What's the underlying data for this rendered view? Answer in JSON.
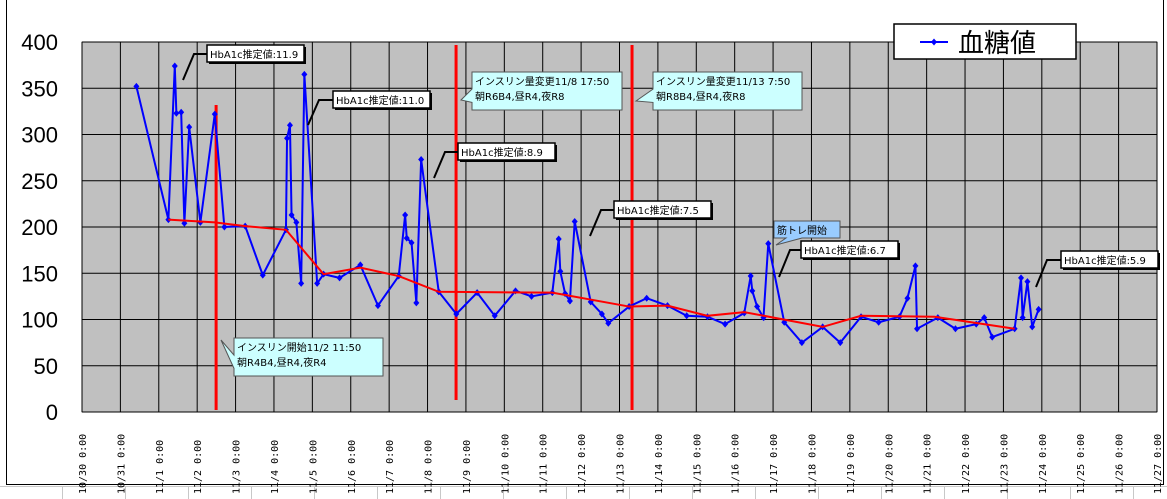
{
  "chart_data": {
    "type": "line",
    "title": "",
    "xlabel": "",
    "ylabel": "",
    "ylim": [
      0,
      400
    ],
    "yticks": [
      "0",
      "50",
      "100",
      "150",
      "200",
      "250",
      "300",
      "350",
      "400"
    ],
    "xlim": [
      "10/30 0:00",
      "11/27 0:00"
    ],
    "xticks": [
      "10/30 0:00",
      "10/31 0:00",
      "11/1 0:00",
      "11/2 0:00",
      "11/3 0:00",
      "11/4 0:00",
      "11/5 0:00",
      "11/6 0:00",
      "11/7 0:00",
      "11/8 0:00",
      "11/9 0:00",
      "11/10 0:00",
      "11/11 0:00",
      "11/12 0:00",
      "11/13 0:00",
      "11/14 0:00",
      "11/15 0:00",
      "11/16 0:00",
      "11/17 0:00",
      "11/18 0:00",
      "11/19 0:00",
      "11/20 0:00",
      "11/21 0:00",
      "11/22 0:00",
      "11/23 0:00",
      "11/24 0:00",
      "11/25 0:00",
      "11/26 0:00",
      "11/27 0:00"
    ],
    "grid": true,
    "background": "#c0c0c0",
    "legend": {
      "placement": "top-right",
      "entries": [
        "血糖値"
      ]
    },
    "series": [
      {
        "name": "血糖値",
        "color": "#0000ff",
        "marker": "diamond",
        "points": [
          [
            "10/31 10:00",
            352
          ],
          [
            "11/1 6:00",
            208
          ],
          [
            "11/1 10:00",
            374
          ],
          [
            "11/1 11:00",
            323
          ],
          [
            "11/1 14:00",
            324
          ],
          [
            "11/1 16:00",
            204
          ],
          [
            "11/1 19:00",
            308
          ],
          [
            "11/2 2:00",
            205
          ],
          [
            "11/2 11:00",
            322
          ],
          [
            "11/2 17:00",
            200
          ],
          [
            "11/3 6:00",
            201
          ],
          [
            "11/3 17:00",
            148
          ],
          [
            "11/4 7:30",
            197
          ],
          [
            "11/4 8:10",
            296
          ],
          [
            "11/4 10:00",
            310
          ],
          [
            "11/4 11:00",
            213
          ],
          [
            "11/4 14:00",
            205
          ],
          [
            "11/4 17:00",
            139
          ],
          [
            "11/4 19:00",
            365
          ],
          [
            "11/5 3:00",
            139
          ],
          [
            "11/5 7:00",
            149
          ],
          [
            "11/5 17:00",
            145
          ],
          [
            "11/6 6:00",
            159
          ],
          [
            "11/6 17:00",
            115
          ],
          [
            "11/7 6:00",
            147
          ],
          [
            "11/7 10:00",
            213
          ],
          [
            "11/7 11:00",
            188
          ],
          [
            "11/7 14:00",
            183
          ],
          [
            "11/7 17:00",
            118
          ],
          [
            "11/7 20:00",
            273
          ],
          [
            "11/8 7:00",
            130
          ],
          [
            "11/8 18:00",
            106
          ],
          [
            "11/9 7:00",
            129
          ],
          [
            "11/9 18:00",
            104
          ],
          [
            "11/10 7:00",
            131
          ],
          [
            "11/10 17:00",
            125
          ],
          [
            "11/11 6:00",
            129
          ],
          [
            "11/11 10:00",
            187
          ],
          [
            "11/11 11:00",
            152
          ],
          [
            "11/11 14:00",
            128
          ],
          [
            "11/11 17:00",
            120
          ],
          [
            "11/11 20:00",
            206
          ],
          [
            "11/12 6:00",
            119
          ],
          [
            "11/12 13:00",
            106
          ],
          [
            "11/12 17:00",
            96
          ],
          [
            "11/13 6:00",
            114
          ],
          [
            "11/13 17:00",
            123
          ],
          [
            "11/14 6:00",
            115
          ],
          [
            "11/14 18:00",
            104
          ],
          [
            "11/15 7:00",
            103
          ],
          [
            "11/15 18:00",
            95
          ],
          [
            "11/16 6:00",
            107
          ],
          [
            "11/16 10:00",
            147
          ],
          [
            "11/16 11:00",
            131
          ],
          [
            "11/16 14:00",
            114
          ],
          [
            "11/16 18:00",
            102
          ],
          [
            "11/16 21:00",
            182
          ],
          [
            "11/17 7:00",
            97
          ],
          [
            "11/17 18:00",
            75
          ],
          [
            "11/18 7:00",
            92
          ],
          [
            "11/18 18:00",
            75
          ],
          [
            "11/19 7:00",
            103
          ],
          [
            "11/19 18:00",
            97
          ],
          [
            "11/20 7:00",
            103
          ],
          [
            "11/20 12:00",
            123
          ],
          [
            "11/20 17:00",
            158
          ],
          [
            "11/20 18:00",
            90
          ],
          [
            "11/21 7:00",
            102
          ],
          [
            "11/21 18:00",
            90
          ],
          [
            "11/22 7:00",
            95
          ],
          [
            "11/22 12:00",
            102
          ],
          [
            "11/22 17:00",
            81
          ],
          [
            "11/23 7:00",
            90
          ],
          [
            "11/23 11:00",
            145
          ],
          [
            "11/23 12:00",
            102
          ],
          [
            "11/23 15:00",
            141
          ],
          [
            "11/23 18:00",
            92
          ],
          [
            "11/23 22:00",
            111
          ]
        ]
      },
      {
        "color": "#ff0000",
        "marker": "none",
        "points": [
          [
            "11/1 6:00",
            208
          ],
          [
            "11/2 11:00",
            205
          ],
          [
            "11/3 6:00",
            201
          ],
          [
            "11/4 7:30",
            197
          ],
          [
            "11/5 7:00",
            149
          ],
          [
            "11/6 6:00",
            156
          ],
          [
            "11/7 6:00",
            147
          ],
          [
            "11/8 7:00",
            130
          ],
          [
            "11/11 6:00",
            129
          ],
          [
            "11/13 6:00",
            114
          ],
          [
            "11/14 6:00",
            115
          ],
          [
            "11/15 7:00",
            104
          ],
          [
            "11/16 6:00",
            108
          ],
          [
            "11/18 7:00",
            92
          ],
          [
            "11/19 7:00",
            104
          ],
          [
            "11/21 5:00",
            103
          ],
          [
            "11/23 7:00",
            90
          ]
        ]
      }
    ],
    "event_lines": [
      {
        "x": "11/2 11:50",
        "color": "#ff0000"
      },
      {
        "x": "11/8 17:50",
        "color": "#ff0000"
      },
      {
        "x": "11/13 7:50",
        "color": "#ff0000"
      }
    ],
    "annotations": [
      {
        "kind": "hba1c",
        "text": "HbA1c推定値:11.9"
      },
      {
        "kind": "hba1c",
        "text": "HbA1c推定値:11.0"
      },
      {
        "kind": "hba1c",
        "text": "HbA1c推定値:8.9"
      },
      {
        "kind": "hba1c",
        "text": "HbA1c推定値:7.5"
      },
      {
        "kind": "hba1c",
        "text": "HbA1c推定値:6.7"
      },
      {
        "kind": "hba1c",
        "text": "HbA1c推定値:5.9"
      },
      {
        "kind": "callout",
        "line1": "インスリン開始11/2 11:50",
        "line2": "朝R4B4,昼R4,夜R4",
        "color": "#ccffff"
      },
      {
        "kind": "callout",
        "line1": "インスリン量変更11/8 17:50",
        "line2": "朝R6B4,昼R4,夜R8",
        "color": "#ccffff"
      },
      {
        "kind": "callout",
        "line1": "インスリン量変更11/13 7:50",
        "line2": "朝R8B4,昼R4,夜R8",
        "color": "#ccffff"
      },
      {
        "kind": "callout",
        "line1": "筋トレ開始",
        "color": "#99ccff"
      }
    ]
  }
}
